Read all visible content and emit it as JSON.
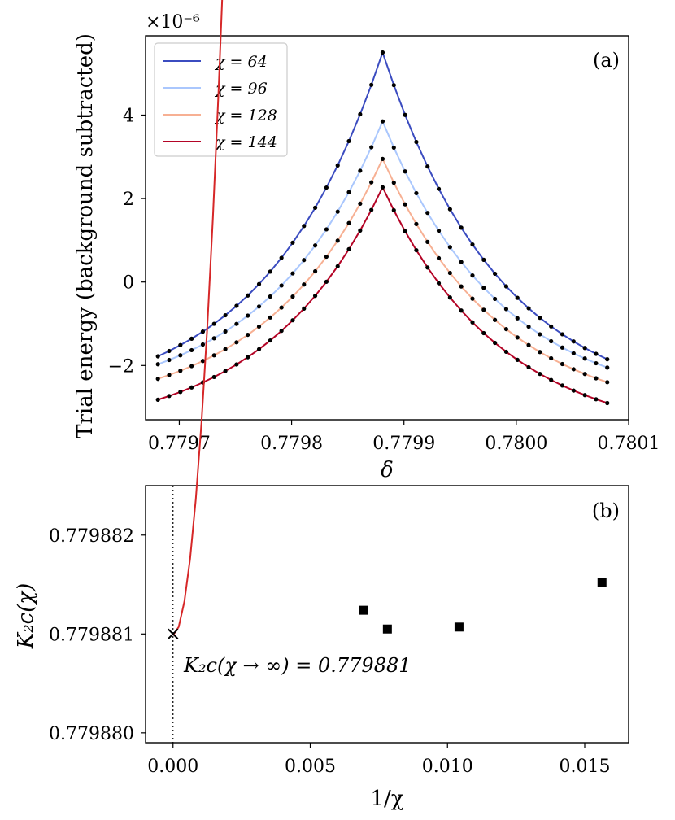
{
  "chart_data": [
    {
      "panel": "(a)",
      "type": "line",
      "xlabel": "δ",
      "ylabel": "Trial energy (background subtracted)",
      "y_scale_label": "×10⁻⁶",
      "xlim": [
        0.77967,
        0.7801
      ],
      "ylim": [
        -3.3,
        5.9
      ],
      "xticks": [
        "0.7797",
        "0.7798",
        "0.7799",
        "0.7800",
        "0.7801"
      ],
      "xtick_values": [
        0.7797,
        0.7798,
        0.7799,
        0.78,
        0.7801
      ],
      "yticks": [
        "−2",
        "0",
        "2",
        "4"
      ],
      "ytick_values": [
        -2,
        0,
        2,
        4
      ],
      "legend_position": "upper left",
      "peak_x": 0.779881,
      "x_min": 0.779681,
      "x_max": 0.780081,
      "n_points_per_side": 20,
      "series": [
        {
          "name": "χ = 64",
          "color": "#3b4cc0",
          "peak": 5.5,
          "left_end": -1.78,
          "right_end": -1.85
        },
        {
          "name": "χ = 96",
          "color": "#aac7fd",
          "peak": 3.85,
          "left_end": -1.97,
          "right_end": -2.05
        },
        {
          "name": "χ = 128",
          "color": "#f7b093",
          "peak": 2.95,
          "left_end": -2.32,
          "right_end": -2.4
        },
        {
          "name": "χ = 144",
          "color": "#b40426",
          "peak": 2.27,
          "left_end": -2.82,
          "right_end": -2.9
        }
      ]
    },
    {
      "panel": "(b)",
      "type": "scatter",
      "xlabel": "1/χ",
      "ylabel": "K₂c(χ)",
      "xlim": [
        -0.001,
        0.0166
      ],
      "ylim": [
        0.7798799,
        0.7798825
      ],
      "xticks": [
        "0.000",
        "0.005",
        "0.010",
        "0.015"
      ],
      "xtick_values": [
        0.0,
        0.005,
        0.01,
        0.015
      ],
      "yticks": [
        "0.779880",
        "0.779881",
        "0.779882"
      ],
      "ytick_values": [
        0.77988,
        0.779881,
        0.779882
      ],
      "points": [
        {
          "x": 0.00694,
          "y": 0.77988124
        },
        {
          "x": 0.00781,
          "y": 0.77988105
        },
        {
          "x": 0.01042,
          "y": 0.77988107
        },
        {
          "x": 0.01563,
          "y": 0.77988152
        }
      ],
      "extrapolated": {
        "x": 0.0,
        "y": 0.779881
      },
      "fit_color": "#d62728",
      "fit": {
        "a": 0.779880985,
        "b": 2.0,
        "c": 0.0
      },
      "annotation": "K₂c(χ → ∞) = 0.779881"
    }
  ],
  "labels": {
    "panel_a_tag": "(a)",
    "panel_b_tag": "(b)"
  }
}
